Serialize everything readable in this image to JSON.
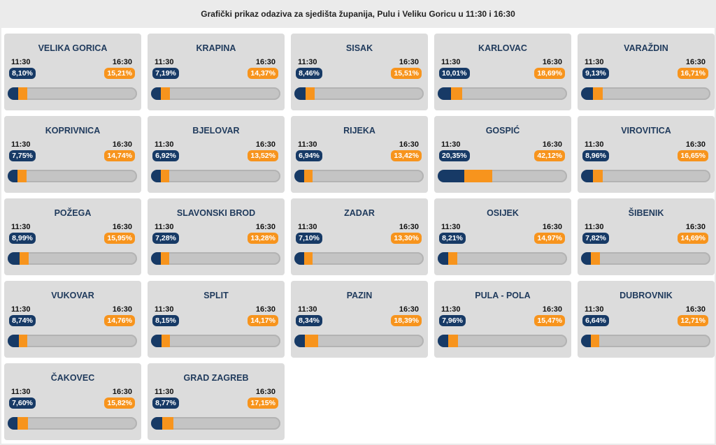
{
  "header": {
    "title": "Grafički prikaz odaziva za sjedišta županija, Pulu i Veliku Goricu u 11:30 i 16:30"
  },
  "colors": {
    "early": "#173a66",
    "late": "#f7941d",
    "track": "#c4c4c4"
  },
  "chart_data": {
    "type": "bar",
    "title": "Grafički prikaz odaziva za sjedišta županija, Pulu i Veliku Goricu u 11:30 i 16:30",
    "xlim": [
      0,
      100
    ],
    "series": [
      {
        "name": "11:30",
        "color": "#173a66"
      },
      {
        "name": "16:30",
        "color": "#f7941d"
      }
    ],
    "cities": [
      {
        "name": "VELIKA GORICA",
        "t1": "11:30",
        "t2": "16:30",
        "v1": 8.1,
        "v2": 15.21,
        "l1": "8,10%",
        "l2": "15,21%"
      },
      {
        "name": "KRAPINA",
        "t1": "11:30",
        "t2": "16:30",
        "v1": 7.19,
        "v2": 14.37,
        "l1": "7,19%",
        "l2": "14,37%"
      },
      {
        "name": "SISAK",
        "t1": "11:30",
        "t2": "16:30",
        "v1": 8.46,
        "v2": 15.51,
        "l1": "8,46%",
        "l2": "15,51%"
      },
      {
        "name": "KARLOVAC",
        "t1": "11:30",
        "t2": "16:30",
        "v1": 10.01,
        "v2": 18.69,
        "l1": "10,01%",
        "l2": "18,69%"
      },
      {
        "name": "VARAŽDIN",
        "t1": "11:30",
        "t2": "16:30",
        "v1": 9.13,
        "v2": 16.71,
        "l1": "9,13%",
        "l2": "16,71%"
      },
      {
        "name": "KOPRIVNICA",
        "t1": "11:30",
        "t2": "16:30",
        "v1": 7.75,
        "v2": 14.74,
        "l1": "7,75%",
        "l2": "14,74%"
      },
      {
        "name": "BJELOVAR",
        "t1": "11:30",
        "t2": "16:30",
        "v1": 6.92,
        "v2": 13.52,
        "l1": "6,92%",
        "l2": "13,52%"
      },
      {
        "name": "RIJEKA",
        "t1": "11:30",
        "t2": "16:30",
        "v1": 6.94,
        "v2": 13.42,
        "l1": "6,94%",
        "l2": "13,42%"
      },
      {
        "name": "GOSPIĆ",
        "t1": "11:30",
        "t2": "16:30",
        "v1": 20.35,
        "v2": 42.12,
        "l1": "20,35%",
        "l2": "42,12%"
      },
      {
        "name": "VIROVITICA",
        "t1": "11:30",
        "t2": "16:30",
        "v1": 8.96,
        "v2": 16.65,
        "l1": "8,96%",
        "l2": "16,65%"
      },
      {
        "name": "POŽEGA",
        "t1": "11:30",
        "t2": "16:30",
        "v1": 8.99,
        "v2": 15.95,
        "l1": "8,99%",
        "l2": "15,95%"
      },
      {
        "name": "SLAVONSKI BROD",
        "t1": "11:30",
        "t2": "16:30",
        "v1": 7.28,
        "v2": 13.28,
        "l1": "7,28%",
        "l2": "13,28%"
      },
      {
        "name": "ZADAR",
        "t1": "11:30",
        "t2": "16:30",
        "v1": 7.1,
        "v2": 13.3,
        "l1": "7,10%",
        "l2": "13,30%"
      },
      {
        "name": "OSIJEK",
        "t1": "11:30",
        "t2": "16:30",
        "v1": 8.21,
        "v2": 14.97,
        "l1": "8,21%",
        "l2": "14,97%"
      },
      {
        "name": "ŠIBENIK",
        "t1": "11:30",
        "t2": "16:30",
        "v1": 7.82,
        "v2": 14.69,
        "l1": "7,82%",
        "l2": "14,69%"
      },
      {
        "name": "VUKOVAR",
        "t1": "11:30",
        "t2": "16:30",
        "v1": 8.74,
        "v2": 14.76,
        "l1": "8,74%",
        "l2": "14,76%"
      },
      {
        "name": "SPLIT",
        "t1": "11:30",
        "t2": "16:30",
        "v1": 8.15,
        "v2": 14.17,
        "l1": "8,15%",
        "l2": "14,17%"
      },
      {
        "name": "PAZIN",
        "t1": "11:30",
        "t2": "16:30",
        "v1": 8.34,
        "v2": 18.39,
        "l1": "8,34%",
        "l2": "18,39%"
      },
      {
        "name": "PULA - POLA",
        "t1": "11:30",
        "t2": "16:30",
        "v1": 7.96,
        "v2": 15.47,
        "l1": "7,96%",
        "l2": "15,47%"
      },
      {
        "name": "DUBROVNIK",
        "t1": "11:30",
        "t2": "16:30",
        "v1": 6.64,
        "v2": 12.71,
        "l1": "6,64%",
        "l2": "12,71%"
      },
      {
        "name": "ČAKOVEC",
        "t1": "11:30",
        "t2": "16:30",
        "v1": 7.6,
        "v2": 15.82,
        "l1": "7,60%",
        "l2": "15,82%"
      },
      {
        "name": "GRAD ZAGREB",
        "t1": "11:30",
        "t2": "16:30",
        "v1": 8.77,
        "v2": 17.15,
        "l1": "8,77%",
        "l2": "17,15%"
      }
    ]
  }
}
